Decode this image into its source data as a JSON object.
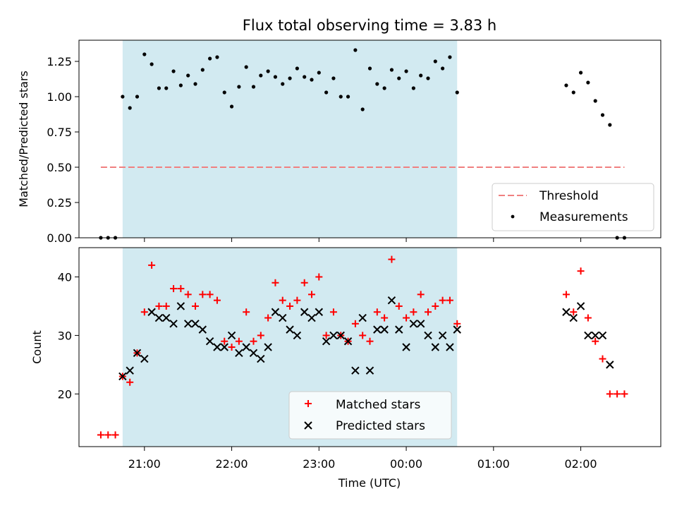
{
  "chart_data": [
    {
      "type": "scatter",
      "title": "Flux total observing time = 3.83 h",
      "xlabel": "",
      "ylabel": "Matched/Predicted stars",
      "ylim": [
        0,
        1.4
      ],
      "xlim": [
        "20:15",
        "02:55"
      ],
      "yticks": [
        "0.00",
        "0.25",
        "0.50",
        "0.75",
        "1.00",
        "1.25"
      ],
      "shaded_span": {
        "from": "20:45",
        "to": "00:35",
        "color": "#add8e6"
      },
      "legend_position": "lower-right",
      "legend": [
        "Threshold",
        "Measurements"
      ],
      "series": [
        {
          "name": "Threshold",
          "style": "dashed-line",
          "color": "#f08080",
          "x": [
            "20:30",
            "02:30"
          ],
          "y": [
            0.5,
            0.5
          ]
        },
        {
          "name": "Measurements",
          "style": "dot",
          "color": "#000000",
          "x": [
            "20:30",
            "20:35",
            "20:40",
            "20:45",
            "20:50",
            "20:55",
            "21:00",
            "21:05",
            "21:10",
            "21:15",
            "21:20",
            "21:25",
            "21:30",
            "21:35",
            "21:40",
            "21:45",
            "21:50",
            "21:55",
            "22:00",
            "22:05",
            "22:10",
            "22:15",
            "22:20",
            "22:25",
            "22:30",
            "22:35",
            "22:40",
            "22:45",
            "22:50",
            "22:55",
            "23:00",
            "23:05",
            "23:10",
            "23:15",
            "23:20",
            "23:25",
            "23:30",
            "23:35",
            "23:40",
            "23:45",
            "23:50",
            "23:55",
            "00:00",
            "00:05",
            "00:10",
            "00:15",
            "00:20",
            "00:25",
            "00:30",
            "00:35",
            "01:50",
            "01:55",
            "02:00",
            "02:05",
            "02:10",
            "02:15",
            "02:20",
            "02:25",
            "02:30"
          ],
          "y": [
            0,
            0,
            0,
            1.0,
            0.92,
            1.0,
            1.3,
            1.23,
            1.06,
            1.06,
            1.18,
            1.08,
            1.15,
            1.09,
            1.19,
            1.27,
            1.28,
            1.03,
            0.93,
            1.07,
            1.21,
            1.07,
            1.15,
            1.18,
            1.14,
            1.09,
            1.13,
            1.2,
            1.14,
            1.12,
            1.17,
            1.03,
            1.13,
            1.0,
            1.0,
            1.33,
            0.91,
            1.2,
            1.09,
            1.06,
            1.19,
            1.13,
            1.18,
            1.06,
            1.15,
            1.13,
            1.25,
            1.2,
            1.28,
            1.03,
            1.08,
            1.03,
            1.17,
            1.1,
            0.97,
            0.87,
            0.8,
            0,
            0
          ]
        }
      ]
    },
    {
      "type": "scatter",
      "title": "",
      "xlabel": "Time (UTC)",
      "ylabel": "Count",
      "ylim": [
        11,
        45
      ],
      "xlim": [
        "20:15",
        "02:55"
      ],
      "yticks": [
        "20",
        "30",
        "40"
      ],
      "xticks": [
        "21:00",
        "22:00",
        "23:00",
        "00:00",
        "01:00",
        "02:00"
      ],
      "shaded_span": {
        "from": "20:45",
        "to": "00:35",
        "color": "#add8e6"
      },
      "legend_position": "lower-center",
      "legend": [
        "Matched stars",
        "Predicted stars"
      ],
      "series": [
        {
          "name": "Matched stars",
          "marker": "plus",
          "color": "#ff0000",
          "x": [
            "20:30",
            "20:35",
            "20:40",
            "20:45",
            "20:50",
            "20:55",
            "21:00",
            "21:05",
            "21:10",
            "21:15",
            "21:20",
            "21:25",
            "21:30",
            "21:35",
            "21:40",
            "21:45",
            "21:50",
            "21:55",
            "22:00",
            "22:05",
            "22:10",
            "22:15",
            "22:20",
            "22:25",
            "22:30",
            "22:35",
            "22:40",
            "22:45",
            "22:50",
            "22:55",
            "23:00",
            "23:05",
            "23:10",
            "23:15",
            "23:20",
            "23:25",
            "23:30",
            "23:35",
            "23:40",
            "23:45",
            "23:50",
            "23:55",
            "00:00",
            "00:05",
            "00:10",
            "00:15",
            "00:20",
            "00:25",
            "00:30",
            "00:35",
            "01:50",
            "01:55",
            "02:00",
            "02:05",
            "02:10",
            "02:15",
            "02:20",
            "02:25",
            "02:30"
          ],
          "y": [
            13,
            13,
            13,
            23,
            22,
            27,
            34,
            42,
            35,
            35,
            38,
            38,
            37,
            35,
            37,
            37,
            36,
            29,
            28,
            29,
            34,
            29,
            30,
            33,
            39,
            36,
            35,
            36,
            39,
            37,
            40,
            30,
            34,
            30,
            29,
            32,
            30,
            29,
            34,
            33,
            43,
            35,
            33,
            34,
            37,
            34,
            35,
            36,
            36,
            32,
            37,
            34,
            41,
            33,
            29,
            26,
            20,
            20,
            20
          ]
        },
        {
          "name": "Predicted stars",
          "marker": "x",
          "color": "#000000",
          "x": [
            "20:45",
            "20:50",
            "20:55",
            "21:00",
            "21:05",
            "21:10",
            "21:15",
            "21:20",
            "21:25",
            "21:30",
            "21:35",
            "21:40",
            "21:45",
            "21:50",
            "21:55",
            "22:00",
            "22:05",
            "22:10",
            "22:15",
            "22:20",
            "22:25",
            "22:30",
            "22:35",
            "22:40",
            "22:45",
            "22:50",
            "22:55",
            "23:00",
            "23:05",
            "23:10",
            "23:15",
            "23:20",
            "23:25",
            "23:30",
            "23:35",
            "23:40",
            "23:45",
            "23:50",
            "23:55",
            "00:00",
            "00:05",
            "00:10",
            "00:15",
            "00:20",
            "00:25",
            "00:30",
            "00:35",
            "01:50",
            "01:55",
            "02:00",
            "02:05",
            "02:10",
            "02:15",
            "02:20"
          ],
          "y": [
            23,
            24,
            27,
            26,
            34,
            33,
            33,
            32,
            35,
            32,
            32,
            31,
            29,
            28,
            28,
            30,
            27,
            28,
            27,
            26,
            28,
            34,
            33,
            31,
            30,
            34,
            33,
            34,
            29,
            30,
            30,
            29,
            24,
            33,
            24,
            31,
            31,
            36,
            31,
            28,
            32,
            32,
            30,
            28,
            30,
            28,
            31,
            34,
            33,
            35,
            30,
            30,
            30,
            25
          ]
        }
      ]
    }
  ]
}
